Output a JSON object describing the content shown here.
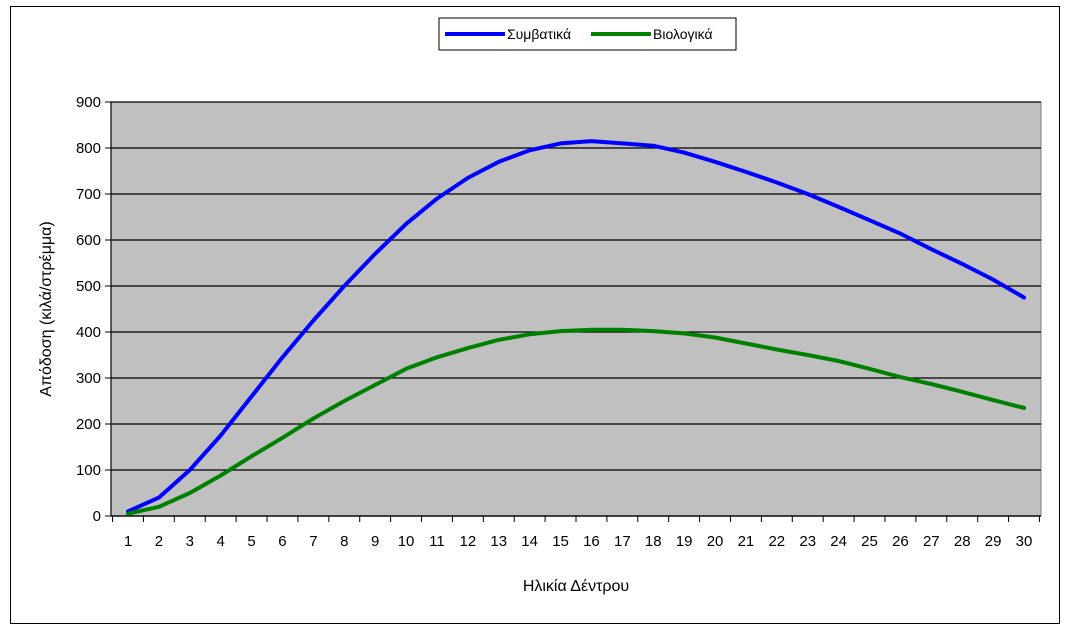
{
  "chart_data": {
    "type": "line",
    "title": "",
    "xlabel": "Ηλικία Δέντρου",
    "ylabel": "Απόδοση (κιλά/στρέμμα)",
    "categories": [
      "1",
      "2",
      "3",
      "4",
      "5",
      "6",
      "7",
      "8",
      "9",
      "10",
      "11",
      "12",
      "13",
      "14",
      "15",
      "16",
      "17",
      "18",
      "19",
      "20",
      "21",
      "22",
      "23",
      "24",
      "25",
      "26",
      "27",
      "28",
      "29",
      "30"
    ],
    "ylim": [
      0,
      900
    ],
    "yticks": [
      "0",
      "100",
      "200",
      "300",
      "400",
      "500",
      "600",
      "700",
      "800",
      "900"
    ],
    "grid": true,
    "legend_position": "top",
    "plot_background": "#c0c0c0",
    "series": [
      {
        "name": "Συμβατικά",
        "color": "#0000ff",
        "values": [
          10,
          40,
          100,
          175,
          260,
          345,
          425,
          500,
          570,
          635,
          690,
          735,
          770,
          795,
          810,
          815,
          810,
          805,
          790,
          770,
          748,
          725,
          700,
          672,
          643,
          614,
          580,
          548,
          514,
          475
        ]
      },
      {
        "name": "Βιολογικά",
        "color": "#008000",
        "values": [
          5,
          20,
          50,
          88,
          130,
          170,
          212,
          250,
          285,
          320,
          345,
          365,
          383,
          395,
          402,
          405,
          405,
          402,
          397,
          388,
          375,
          362,
          350,
          337,
          320,
          302,
          287,
          270,
          252,
          235
        ]
      }
    ]
  }
}
